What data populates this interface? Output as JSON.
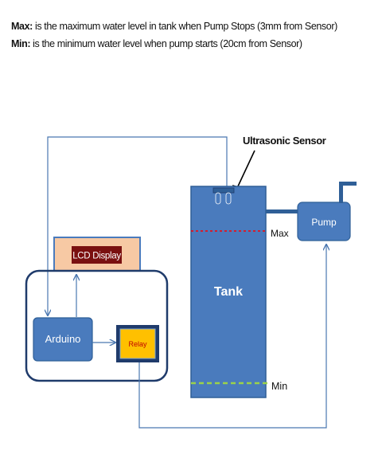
{
  "notes": {
    "max_term": "Max:",
    "max_text": " is the maximum water level in tank when Pump Stops (3mm from Sensor)",
    "min_term": "Min:",
    "min_text": " is the minimum water level when pump starts (20cm from Sensor)"
  },
  "diagram": {
    "sensor_label": "Ultrasonic Sensor",
    "lcd_label": "LCD Display",
    "arduino_label": "Arduino",
    "relay_label": "Relay",
    "tank_label": "Tank",
    "pump_label": "Pump",
    "max_label": "Max",
    "min_label": "Min"
  },
  "colors": {
    "blue_fill": "#4a7bbd",
    "blue_stroke": "#2f5f97",
    "dark_navy": "#1f3b6b",
    "lcd_panel": "#f7c9a4",
    "lcd_label_bg": "#7a1010",
    "relay_fill": "#ffc000",
    "max_line": "#ff0000",
    "min_line": "#9bd24a",
    "line_blue": "#4a77b0"
  }
}
